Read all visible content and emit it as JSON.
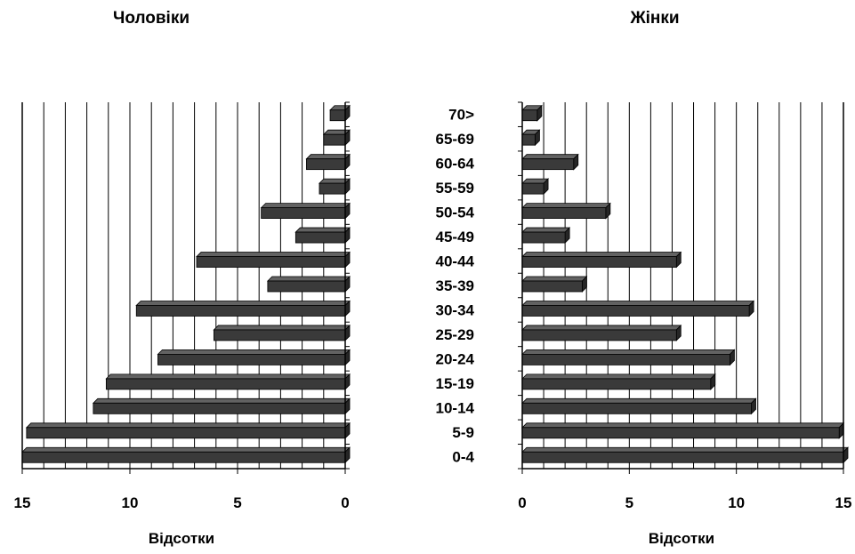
{
  "chart_data": [
    {
      "type": "bar",
      "orientation": "horizontal",
      "title": "Чоловіки",
      "xlabel": "Відсотки",
      "ylabel": "",
      "xlim": [
        15,
        0
      ],
      "x_reversed": true,
      "x_ticks": [
        "15",
        "10",
        "5",
        "0"
      ],
      "grid": true,
      "categories": [
        "0-4",
        "5-9",
        "10-14",
        "15-19",
        "20-24",
        "25-29",
        "30-34",
        "35-39",
        "40-44",
        "45-49",
        "50-54",
        "55-59",
        "60-64",
        "65-69",
        "70>"
      ],
      "values": [
        15.0,
        14.8,
        11.7,
        11.1,
        8.7,
        6.1,
        9.7,
        3.6,
        6.9,
        2.3,
        3.9,
        1.2,
        1.8,
        1.0,
        0.7
      ],
      "bar_color": "#3a3a3a"
    },
    {
      "type": "bar",
      "orientation": "horizontal",
      "title": "Жінки",
      "xlabel": "Відсотки",
      "ylabel": "",
      "xlim": [
        0,
        15
      ],
      "x_ticks": [
        "0",
        "5",
        "10",
        "15"
      ],
      "grid": true,
      "categories": [
        "0-4",
        "5-9",
        "10-14",
        "15-19",
        "20-24",
        "25-29",
        "30-34",
        "35-39",
        "40-44",
        "45-49",
        "50-54",
        "55-59",
        "60-64",
        "65-69",
        "70>"
      ],
      "values": [
        15.0,
        14.8,
        10.7,
        8.8,
        9.7,
        7.2,
        10.6,
        2.8,
        7.2,
        2.0,
        3.9,
        1.0,
        2.4,
        0.6,
        0.7
      ],
      "bar_color": "#3a3a3a"
    }
  ]
}
